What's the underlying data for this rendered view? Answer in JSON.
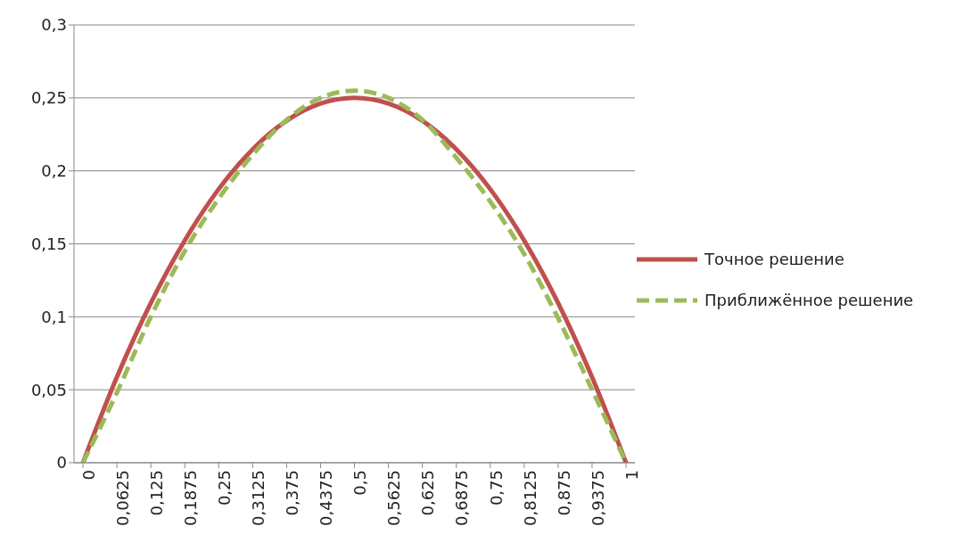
{
  "chart_data": {
    "type": "line",
    "categories": [
      "0",
      "0,0625",
      "0,125",
      "0,1875",
      "0,25",
      "0,3125",
      "0,375",
      "0,4375",
      "0,5",
      "0,5625",
      "0,625",
      "0,6875",
      "0,75",
      "0,8125",
      "0,875",
      "0,9375",
      "1"
    ],
    "series": [
      {
        "name": "Точное решение",
        "color": "#c0504d",
        "line_style": "solid",
        "values": [
          0,
          0.0586,
          0.1094,
          0.1523,
          0.1875,
          0.2148,
          0.2344,
          0.2461,
          0.25,
          0.2461,
          0.2344,
          0.2148,
          0.1875,
          0.1523,
          0.1094,
          0.0586,
          0
        ]
      },
      {
        "name": "Приближённое решение",
        "color": "#9bbb59",
        "line_style": "dashed",
        "values": [
          0,
          0.048,
          0.1,
          0.145,
          0.181,
          0.211,
          0.235,
          0.25,
          0.255,
          0.25,
          0.235,
          0.209,
          0.179,
          0.143,
          0.099,
          0.05,
          0
        ]
      }
    ],
    "ylim": [
      0,
      0.3
    ],
    "yticks": [
      {
        "value": 0,
        "label": "0"
      },
      {
        "value": 0.05,
        "label": "0,05"
      },
      {
        "value": 0.1,
        "label": "0,1"
      },
      {
        "value": 0.15,
        "label": "0,15"
      },
      {
        "value": 0.2,
        "label": "0,2"
      },
      {
        "value": 0.25,
        "label": "0,25"
      },
      {
        "value": 0.3,
        "label": "0,3"
      }
    ],
    "grid": "y",
    "legend": "right",
    "marker": "none"
  }
}
